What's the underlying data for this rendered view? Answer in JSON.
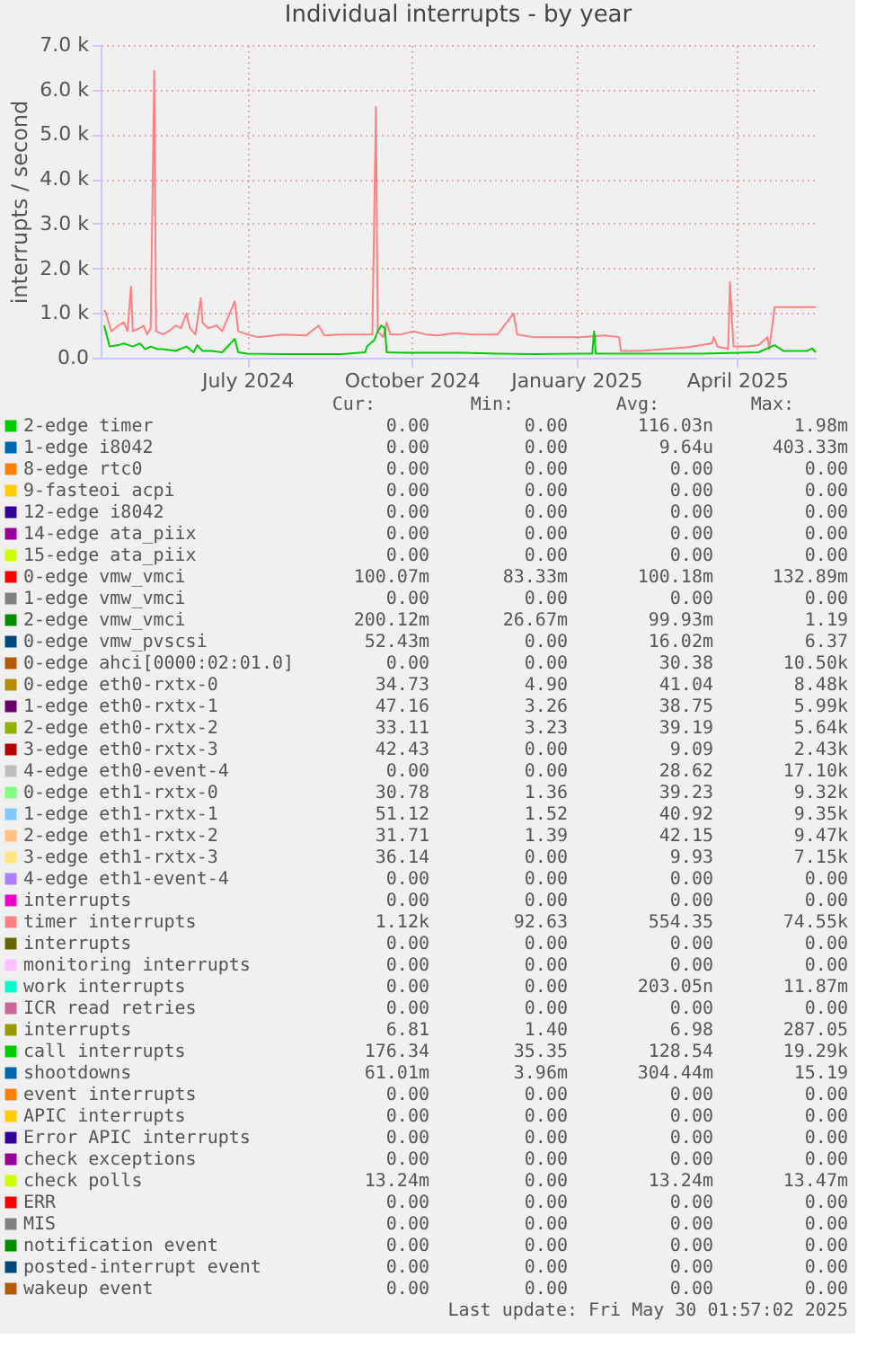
{
  "chart_data": {
    "type": "line",
    "title": "Individual interrupts - by year",
    "ylabel": "interrupts / second",
    "xlim": [
      "2024-04-25",
      "2025-05-30"
    ],
    "xticks": [
      {
        "value": "2024-07-16",
        "label": "July 2024"
      },
      {
        "value": "2024-10-16",
        "label": "October 2024"
      },
      {
        "value": "2025-01-16",
        "label": "January 2025"
      },
      {
        "value": "2025-04-16",
        "label": "April 2025"
      }
    ],
    "ylim": [
      0,
      7000
    ],
    "yticks": [
      {
        "value": 0,
        "label": "0.0"
      },
      {
        "value": 1000,
        "label": "1.0 k"
      },
      {
        "value": 2000,
        "label": "2.0 k"
      },
      {
        "value": 3000,
        "label": "3.0 k"
      },
      {
        "value": 4000,
        "label": "4.0 k"
      },
      {
        "value": 5000,
        "label": "5.0 k"
      },
      {
        "value": 6000,
        "label": "6.0 k"
      },
      {
        "value": 7000,
        "label": "7.0 k"
      }
    ],
    "grid": true,
    "legend": "bottom",
    "series": [
      {
        "name": "2-edge timer",
        "color": "#00cc00"
      },
      {
        "name": "1-edge i8042",
        "color": "#0066b3"
      },
      {
        "name": "8-edge rtc0",
        "color": "#ff8000"
      },
      {
        "name": "9-fasteoi acpi",
        "color": "#ffcc00"
      },
      {
        "name": "12-edge i8042",
        "color": "#330099"
      },
      {
        "name": "14-edge ata_piix",
        "color": "#990099"
      },
      {
        "name": "15-edge ata_piix",
        "color": "#ccff00"
      },
      {
        "name": "0-edge vmw_vmci",
        "color": "#ff0000"
      },
      {
        "name": "1-edge vmw_vmci",
        "color": "#808080"
      },
      {
        "name": "2-edge vmw_vmci",
        "color": "#008f00"
      },
      {
        "name": "0-edge vmw_pvscsi",
        "color": "#00487d"
      },
      {
        "name": "0-edge ahci[0000:02:01.0]",
        "color": "#b35a00"
      },
      {
        "name": "0-edge eth0-rxtx-0",
        "color": "#b38f00"
      },
      {
        "name": "1-edge eth0-rxtx-1",
        "color": "#6b006b"
      },
      {
        "name": "2-edge eth0-rxtx-2",
        "color": "#8fb300"
      },
      {
        "name": "3-edge eth0-rxtx-3",
        "color": "#b30000"
      },
      {
        "name": "4-edge eth0-event-4",
        "color": "#bebebe"
      },
      {
        "name": "0-edge eth1-rxtx-0",
        "color": "#80ff80"
      },
      {
        "name": "1-edge eth1-rxtx-1",
        "color": "#80c9ff"
      },
      {
        "name": "2-edge eth1-rxtx-2",
        "color": "#ffc080"
      },
      {
        "name": "3-edge eth1-rxtx-3",
        "color": "#ffe680"
      },
      {
        "name": "4-edge eth1-event-4",
        "color": "#aa80ff"
      },
      {
        "name": "interrupts",
        "color": "#ee00cc"
      },
      {
        "name": "timer interrupts",
        "color": "#ff8080",
        "x": [
          "2024-04-27",
          "2024-04-28",
          "2024-05-01",
          "2024-05-05",
          "2024-05-08",
          "2024-05-10",
          "2024-05-12",
          "2024-05-13",
          "2024-05-17",
          "2024-05-19",
          "2024-05-21",
          "2024-05-23",
          "2024-05-25",
          "2024-05-26",
          "2024-05-30",
          "2024-06-02",
          "2024-06-06",
          "2024-06-09",
          "2024-06-12",
          "2024-06-14",
          "2024-06-17",
          "2024-06-20",
          "2024-06-21",
          "2024-06-24",
          "2024-06-29",
          "2024-07-02",
          "2024-07-09",
          "2024-07-11",
          "2024-07-16",
          "2024-07-22",
          "2024-08-05",
          "2024-08-18",
          "2024-08-25",
          "2024-08-28",
          "2024-09-07",
          "2024-09-20",
          "2024-09-24",
          "2024-09-26",
          "2024-09-27",
          "2024-09-30",
          "2024-10-02",
          "2024-10-04",
          "2024-10-10",
          "2024-10-17",
          "2024-10-24",
          "2024-10-30",
          "2024-11-09",
          "2024-11-19",
          "2024-12-03",
          "2024-12-12",
          "2024-12-14",
          "2024-12-23",
          "2025-01-05",
          "2025-01-18",
          "2025-02-01",
          "2025-02-09",
          "2025-02-10",
          "2025-02-21",
          "2025-03-06",
          "2025-03-19",
          "2025-04-02",
          "2025-04-03",
          "2025-04-05",
          "2025-04-11",
          "2025-04-12",
          "2025-04-14",
          "2025-04-22",
          "2025-04-28",
          "2025-05-03",
          "2025-05-04",
          "2025-05-07",
          "2025-05-30"
        ],
        "values": [
          1060,
          990,
          590,
          720,
          790,
          590,
          1590,
          590,
          660,
          720,
          520,
          660,
          6420,
          590,
          520,
          590,
          720,
          660,
          990,
          660,
          520,
          1330,
          790,
          660,
          720,
          590,
          1260,
          590,
          520,
          460,
          520,
          500,
          720,
          500,
          520,
          520,
          520,
          5610,
          590,
          460,
          790,
          520,
          520,
          590,
          520,
          500,
          550,
          520,
          520,
          990,
          520,
          460,
          460,
          460,
          500,
          460,
          150,
          150,
          190,
          230,
          320,
          460,
          250,
          190,
          1690,
          250,
          250,
          280,
          460,
          190,
          1130,
          1130
        ]
      },
      {
        "name": "interrupts",
        "color": "#666600"
      },
      {
        "name": "monitoring interrupts",
        "color": "#ffbfff"
      },
      {
        "name": "work interrupts",
        "color": "#00ffcc"
      },
      {
        "name": "ICR read retries",
        "color": "#cc6699"
      },
      {
        "name": "interrupts",
        "color": "#999900"
      },
      {
        "name": "call interrupts",
        "color": "#00cc00",
        "x": [
          "2024-04-27",
          "2024-04-30",
          "2024-05-05",
          "2024-05-08",
          "2024-05-13",
          "2024-05-17",
          "2024-05-20",
          "2024-05-23",
          "2024-05-27",
          "2024-05-30",
          "2024-06-06",
          "2024-06-12",
          "2024-06-16",
          "2024-06-18",
          "2024-06-21",
          "2024-06-26",
          "2024-07-02",
          "2024-07-09",
          "2024-07-11",
          "2024-07-16",
          "2024-08-05",
          "2024-08-25",
          "2024-09-07",
          "2024-09-20",
          "2024-09-21",
          "2024-09-25",
          "2024-09-27",
          "2024-09-29",
          "2024-10-01",
          "2024-10-02",
          "2024-10-10",
          "2024-10-24",
          "2024-11-13",
          "2024-12-03",
          "2024-12-23",
          "2025-01-18",
          "2025-01-25",
          "2025-01-26",
          "2025-01-27",
          "2025-02-21",
          "2025-03-27",
          "2025-04-28",
          "2025-05-07",
          "2025-05-12",
          "2025-05-25",
          "2025-05-28",
          "2025-05-30"
        ],
        "values": [
          720,
          250,
          280,
          320,
          250,
          320,
          190,
          250,
          190,
          190,
          150,
          250,
          120,
          280,
          150,
          150,
          120,
          420,
          120,
          90,
          80,
          80,
          80,
          120,
          250,
          390,
          590,
          720,
          660,
          120,
          110,
          110,
          110,
          90,
          80,
          90,
          90,
          590,
          90,
          90,
          90,
          120,
          280,
          150,
          150,
          210,
          120
        ]
      },
      {
        "name": "shootdowns",
        "color": "#0066b3"
      },
      {
        "name": "event interrupts",
        "color": "#ff8000"
      },
      {
        "name": "APIC interrupts",
        "color": "#ffcc00"
      },
      {
        "name": "Error APIC interrupts",
        "color": "#330099"
      },
      {
        "name": "check exceptions",
        "color": "#990099"
      },
      {
        "name": "check polls",
        "color": "#ccff00"
      },
      {
        "name": "ERR",
        "color": "#ff0000"
      },
      {
        "name": "MIS",
        "color": "#808080"
      },
      {
        "name": "notification event",
        "color": "#008f00"
      },
      {
        "name": "posted-interrupt event",
        "color": "#00487d"
      },
      {
        "name": "wakeup event",
        "color": "#b35a00"
      }
    ],
    "annotations": [
      "Cur:",
      "Min:",
      "Avg:",
      "Max:",
      "0.00",
      "0.00",
      "116.03n",
      "1.98m",
      "0.00",
      "0.00",
      "9.64u",
      "403.33m",
      "0.00",
      "0.00",
      "0.00",
      "0.00",
      "0.00",
      "0.00",
      "0.00",
      "0.00",
      "0.00",
      "0.00",
      "0.00",
      "0.00",
      "0.00",
      "0.00",
      "0.00",
      "0.00",
      "0.00",
      "0.00",
      "0.00",
      "0.00",
      "100.07m",
      "83.33m",
      "100.18m",
      "132.89m",
      "0.00",
      "0.00",
      "0.00",
      "0.00",
      "200.12m",
      "26.67m",
      "99.93m",
      "1.19",
      "52.43m",
      "0.00",
      "16.02m",
      "6.37",
      "0.00",
      "0.00",
      "30.38",
      "10.50k",
      "34.73",
      "4.90",
      "41.04",
      "8.48k",
      "47.16",
      "3.26",
      "38.75",
      "5.99k",
      "33.11",
      "3.23",
      "39.19",
      "5.64k",
      "42.43",
      "0.00",
      "9.09",
      "2.43k",
      "0.00",
      "0.00",
      "28.62",
      "17.10k",
      "30.78",
      "1.36",
      "39.23",
      "9.32k",
      "51.12",
      "1.52",
      "40.92",
      "9.35k",
      "31.71",
      "1.39",
      "42.15",
      "9.47k",
      "36.14",
      "0.00",
      "9.93",
      "7.15k",
      "0.00",
      "0.00",
      "0.00",
      "0.00",
      "0.00",
      "0.00",
      "0.00",
      "0.00",
      "1.12k",
      "92.63",
      "554.35",
      "74.55k",
      "0.00",
      "0.00",
      "0.00",
      "0.00",
      "0.00",
      "0.00",
      "0.00",
      "0.00",
      "0.00",
      "0.00",
      "203.05n",
      "11.87m",
      "0.00",
      "0.00",
      "0.00",
      "0.00",
      "6.81",
      "1.40",
      "6.98",
      "287.05",
      "176.34",
      "35.35",
      "128.54",
      "19.29k",
      "61.01m",
      "3.96m",
      "304.44m",
      "15.19",
      "0.00",
      "0.00",
      "0.00",
      "0.00",
      "0.00",
      "0.00",
      "0.00",
      "0.00",
      "0.00",
      "0.00",
      "0.00",
      "0.00",
      "0.00",
      "0.00",
      "0.00",
      "0.00",
      "13.24m",
      "0.00",
      "13.24m",
      "13.47m",
      "0.00",
      "0.00",
      "0.00",
      "0.00",
      "0.00",
      "0.00",
      "0.00",
      "0.00",
      "0.00",
      "0.00",
      "0.00",
      "0.00",
      "0.00",
      "0.00",
      "0.00",
      "0.00",
      "0.00",
      "0.00",
      "0.00",
      "0.00",
      "Last update: Fri May 30 01:57:02 2025"
    ]
  }
}
